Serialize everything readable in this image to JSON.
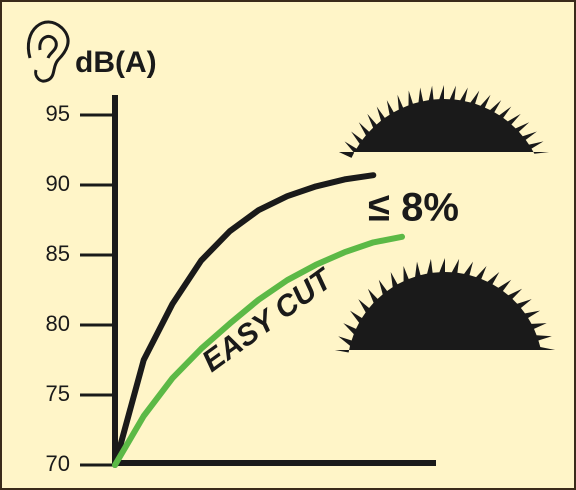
{
  "chart_data": {
    "type": "line",
    "ylabel": "dB(A)",
    "categories": [
      null,
      null,
      null,
      null,
      null,
      null,
      null,
      null,
      null,
      null,
      null
    ],
    "series": [
      {
        "color": "#1a1a1a",
        "values": [
          70,
          77.5,
          81.5,
          84.6,
          86.7,
          88.2,
          89.2,
          89.9,
          90.4,
          90.7,
          null
        ]
      },
      {
        "name": "EASY CUT",
        "color": "#5cb946",
        "values": [
          70,
          73.5,
          76.2,
          78.3,
          80.1,
          81.8,
          83.2,
          84.3,
          85.2,
          85.9,
          86.3
        ]
      }
    ],
    "ylim": [
      70,
      95
    ],
    "yticks": [
      70,
      75,
      80,
      85,
      90,
      95
    ],
    "annotation": "≤ 8%"
  }
}
